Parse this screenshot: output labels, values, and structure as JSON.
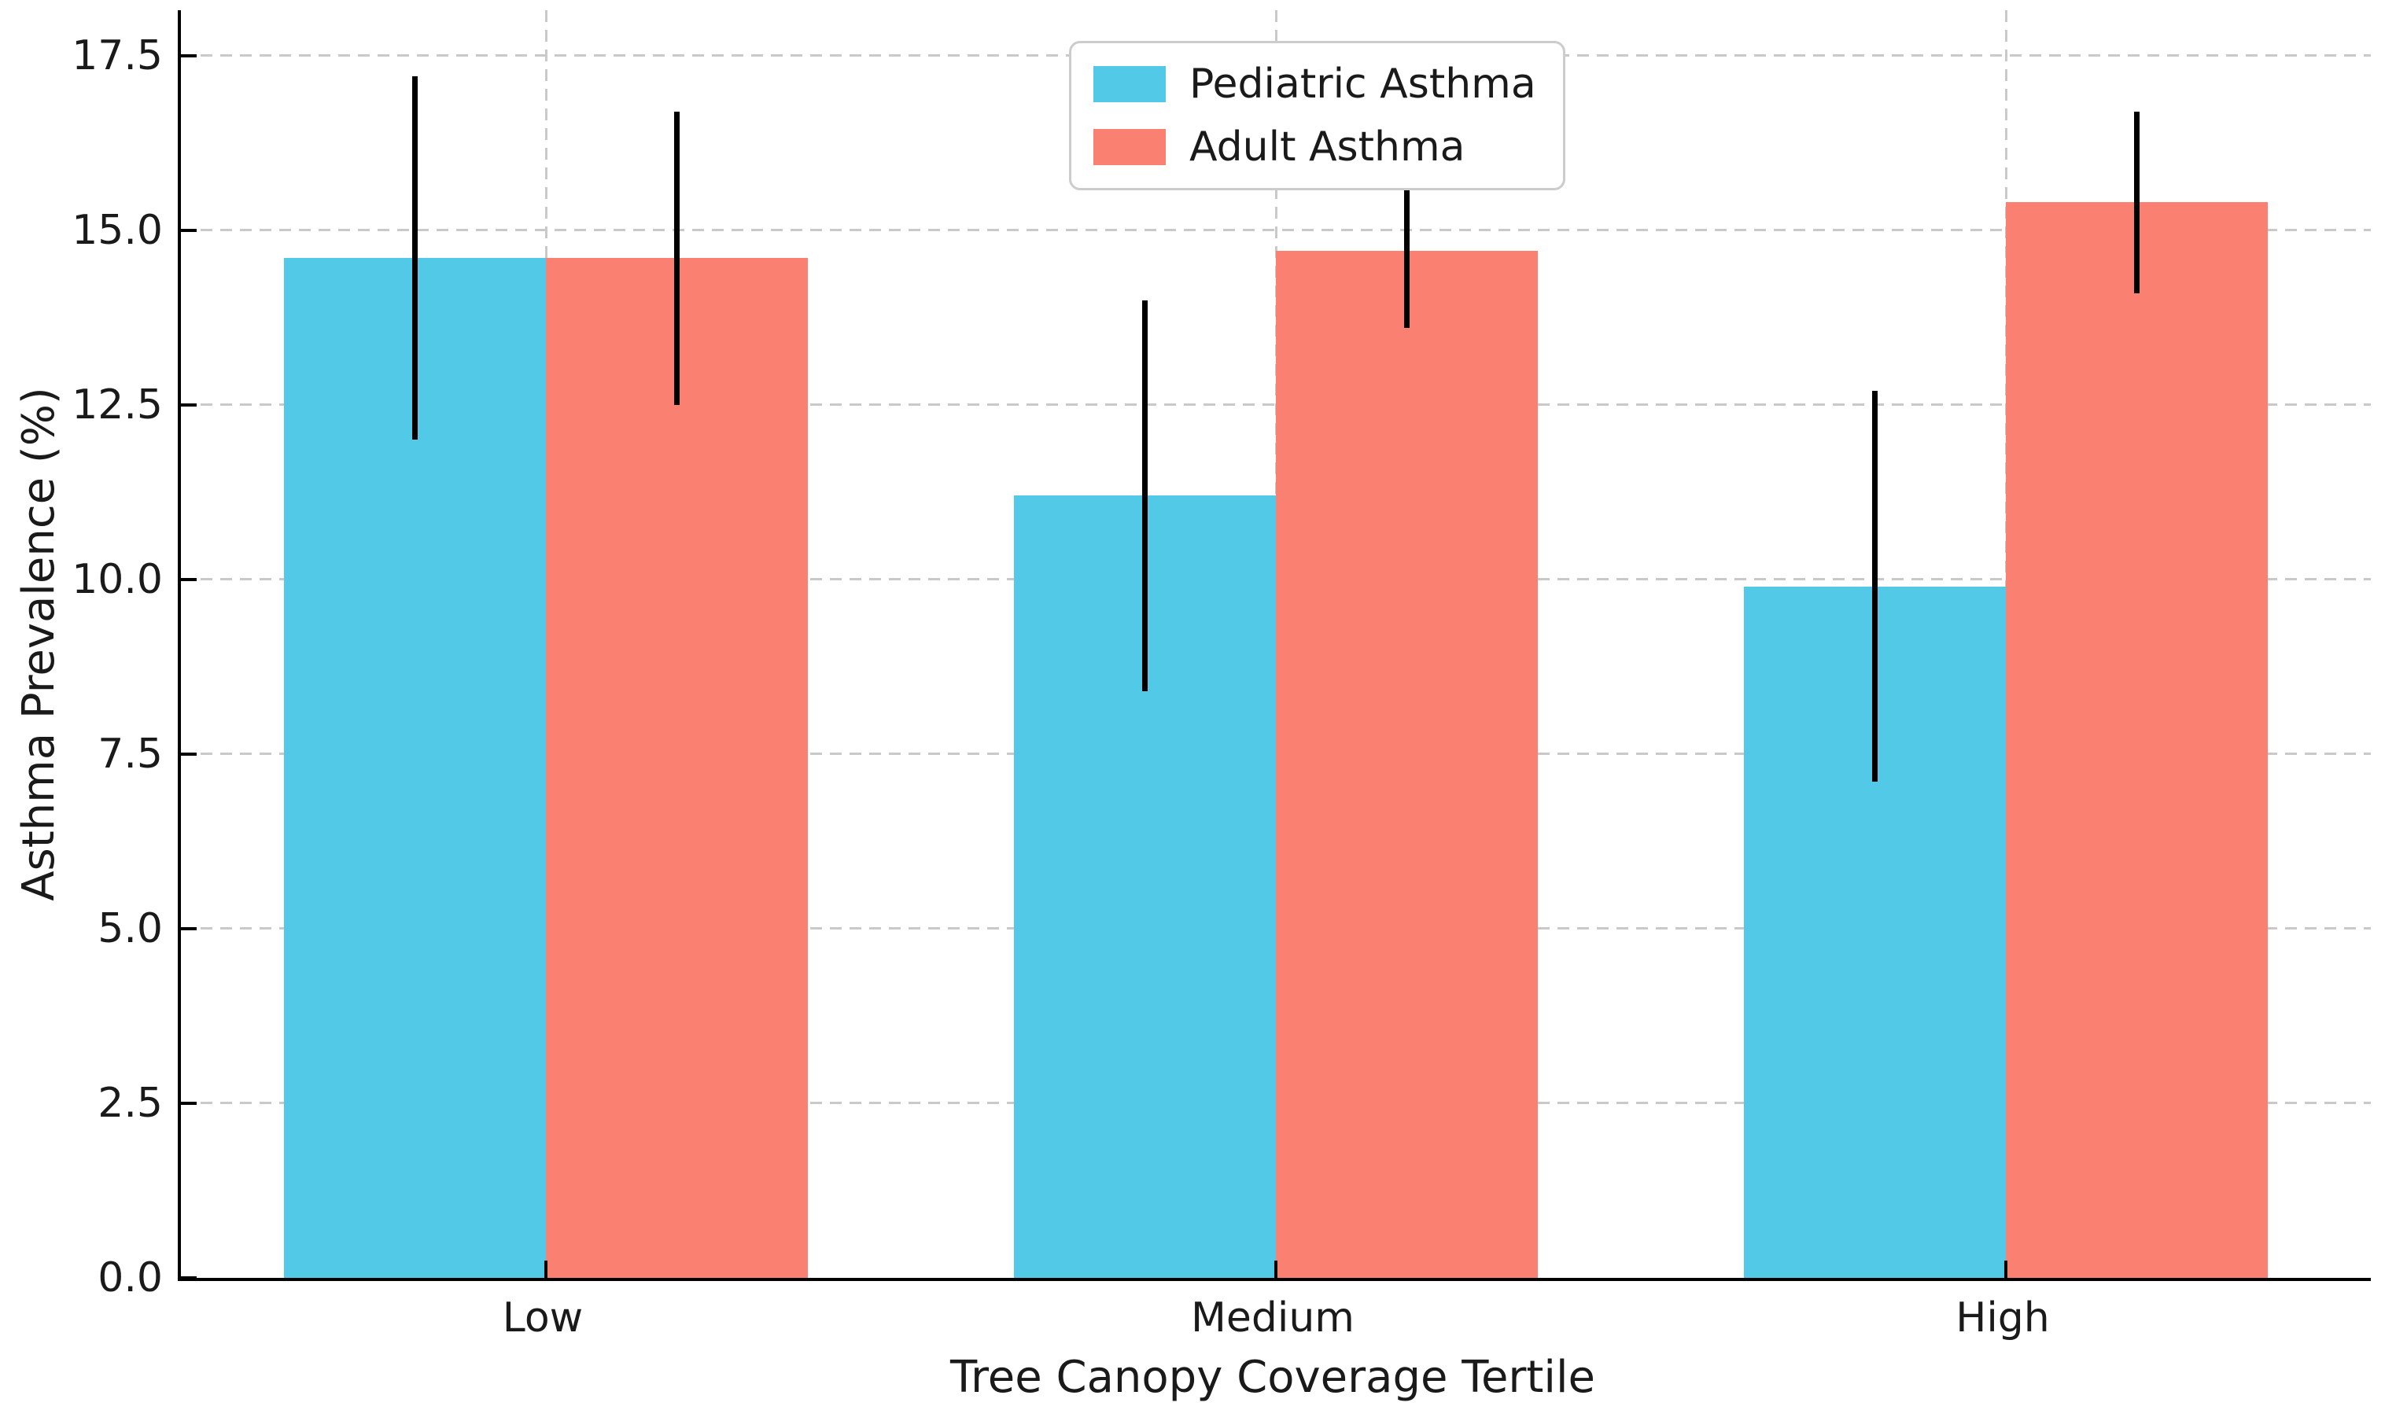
{
  "chart_data": {
    "type": "bar",
    "title": "",
    "xlabel": "Tree Canopy Coverage Tertile",
    "ylabel": "Asthma Prevalence (%)",
    "categories": [
      "Low",
      "Medium",
      "High"
    ],
    "series": [
      {
        "name": "Pediatric Asthma",
        "color": "#53C9E8",
        "values": [
          14.6,
          11.2,
          9.9
        ],
        "errors": [
          2.6,
          2.8,
          2.8
        ]
      },
      {
        "name": "Adult Asthma",
        "color": "#FA8072",
        "values": [
          14.6,
          14.7,
          15.4
        ],
        "errors": [
          2.1,
          1.1,
          1.3
        ]
      }
    ],
    "error_bar_color": "#000000",
    "ylim": [
      0,
      18.15
    ],
    "yticks": [
      0.0,
      2.5,
      5.0,
      7.5,
      10.0,
      12.5,
      15.0,
      17.5
    ],
    "ytick_labels": [
      "0.0",
      "2.5",
      "5.0",
      "7.5",
      "10.0",
      "12.5",
      "15.0",
      "17.5"
    ],
    "grid": true,
    "grid_style": "dashed",
    "grid_color": "#c9c9c9",
    "legend_position": "upper center",
    "bar_group_layout": "grouped-adjacent"
  }
}
